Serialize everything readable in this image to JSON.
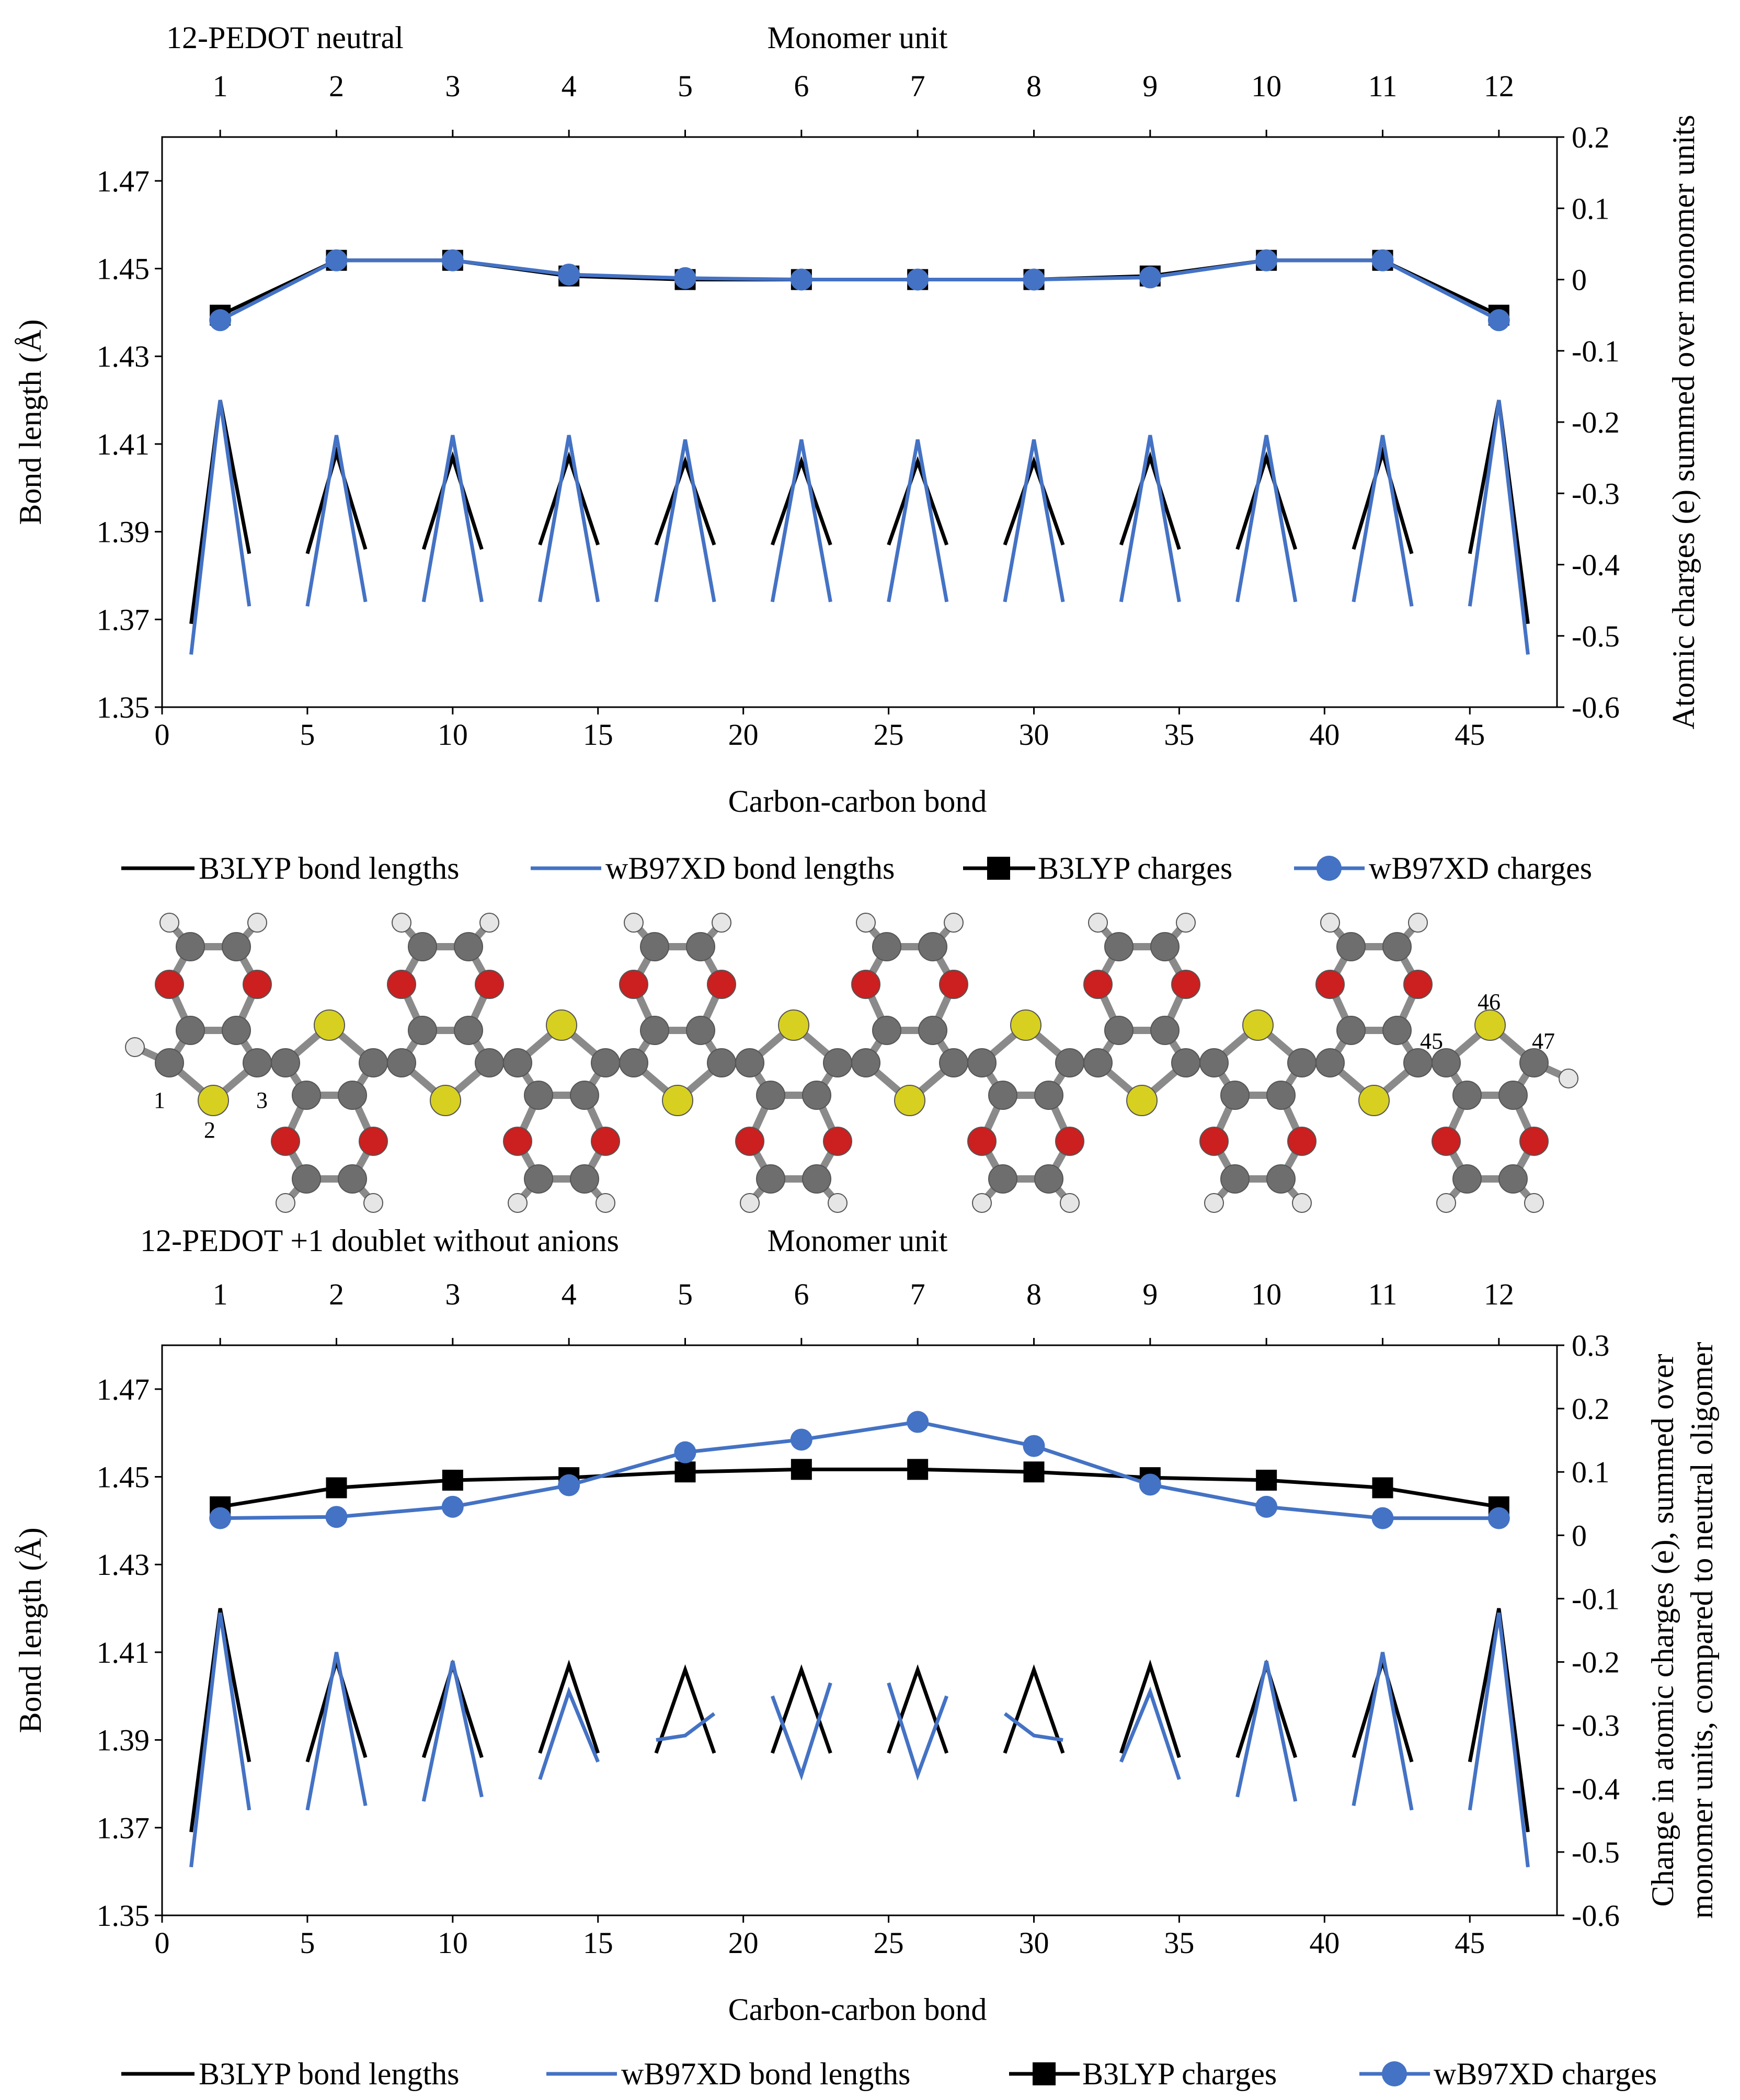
{
  "figure": {
    "panel_a_title": "12-PEDOT neutral",
    "panel_b_title": "12-PEDOT +1 doublet without anions",
    "top_axis_label": "Monomer unit",
    "bottom_axis_label": "Carbon-carbon bond",
    "left_axis_label": "Bond length (Å)",
    "right_axis_label_a": "Atomic charges (e) summed over monomer units",
    "right_axis_label_b_line1": "Change in atomic charges (e), summed over",
    "right_axis_label_b_line2": "monomer units, compared to neutral oligomer",
    "legend": [
      "B3LYP bond lengths",
      "wB97XD bond lengths",
      "B3LYP charges",
      "wB97XD charges"
    ],
    "molecule_atom_labels": [
      "1",
      "2",
      "3",
      "45",
      "46",
      "47"
    ],
    "colors": {
      "b3lyp": "#000000",
      "wb97xd": "#4472C4",
      "carbon": "#6e6e6e",
      "oxygen": "#cc1f1f",
      "sulfur": "#d8d020",
      "hydrogen": "#e6e6e6"
    }
  },
  "chart_data": [
    {
      "type": "line",
      "title": "12-PEDOT neutral",
      "xlabel": "Carbon-carbon bond",
      "ylabel": "Bond length (Å)",
      "x2label": "Monomer unit",
      "y2label": "Atomic charges (e) summed over monomer units",
      "xlim": [
        0,
        48
      ],
      "ylim": [
        1.35,
        1.48
      ],
      "y2lim": [
        -0.6,
        0.2
      ],
      "xticks": [
        0,
        5,
        10,
        15,
        20,
        25,
        30,
        35,
        40,
        45
      ],
      "yticks": [
        1.35,
        1.37,
        1.39,
        1.41,
        1.43,
        1.45,
        1.47
      ],
      "y2ticks": [
        -0.6,
        -0.5,
        -0.4,
        -0.3,
        -0.2,
        -0.1,
        0,
        0.1,
        0.2
      ],
      "x2_categories": [
        "1",
        "2",
        "3",
        "4",
        "5",
        "6",
        "7",
        "8",
        "9",
        "10",
        "11",
        "12"
      ],
      "x2_positions": [
        2,
        6,
        10,
        14,
        18,
        22,
        26,
        30,
        34,
        38,
        42,
        46
      ],
      "bond_series": [
        {
          "name": "B3LYP bond lengths",
          "segments": [
            [
              [
                1,
                1.369
              ],
              [
                2,
                1.42
              ],
              [
                3,
                1.385
              ]
            ],
            [
              [
                5,
                1.385
              ],
              [
                6,
                1.408
              ],
              [
                7,
                1.386
              ]
            ],
            [
              [
                9,
                1.386
              ],
              [
                10,
                1.407
              ],
              [
                11,
                1.386
              ]
            ],
            [
              [
                13,
                1.387
              ],
              [
                14,
                1.407
              ],
              [
                15,
                1.387
              ]
            ],
            [
              [
                17,
                1.387
              ],
              [
                18,
                1.406
              ],
              [
                19,
                1.387
              ]
            ],
            [
              [
                21,
                1.387
              ],
              [
                22,
                1.406
              ],
              [
                23,
                1.387
              ]
            ],
            [
              [
                25,
                1.387
              ],
              [
                26,
                1.406
              ],
              [
                27,
                1.387
              ]
            ],
            [
              [
                29,
                1.387
              ],
              [
                30,
                1.406
              ],
              [
                31,
                1.387
              ]
            ],
            [
              [
                33,
                1.387
              ],
              [
                34,
                1.407
              ],
              [
                35,
                1.386
              ]
            ],
            [
              [
                37,
                1.386
              ],
              [
                38,
                1.407
              ],
              [
                39,
                1.386
              ]
            ],
            [
              [
                41,
                1.386
              ],
              [
                42,
                1.408
              ],
              [
                43,
                1.385
              ]
            ],
            [
              [
                45,
                1.385
              ],
              [
                46,
                1.42
              ],
              [
                47,
                1.369
              ]
            ]
          ]
        },
        {
          "name": "wB97XD bond lengths",
          "segments": [
            [
              [
                1,
                1.362
              ],
              [
                2,
                1.42
              ],
              [
                3,
                1.373
              ]
            ],
            [
              [
                5,
                1.373
              ],
              [
                6,
                1.412
              ],
              [
                7,
                1.374
              ]
            ],
            [
              [
                9,
                1.374
              ],
              [
                10,
                1.412
              ],
              [
                11,
                1.374
              ]
            ],
            [
              [
                13,
                1.374
              ],
              [
                14,
                1.412
              ],
              [
                15,
                1.374
              ]
            ],
            [
              [
                17,
                1.374
              ],
              [
                18,
                1.411
              ],
              [
                19,
                1.374
              ]
            ],
            [
              [
                21,
                1.374
              ],
              [
                22,
                1.411
              ],
              [
                23,
                1.374
              ]
            ],
            [
              [
                25,
                1.374
              ],
              [
                26,
                1.411
              ],
              [
                27,
                1.374
              ]
            ],
            [
              [
                29,
                1.374
              ],
              [
                30,
                1.411
              ],
              [
                31,
                1.374
              ]
            ],
            [
              [
                33,
                1.374
              ],
              [
                34,
                1.412
              ],
              [
                35,
                1.374
              ]
            ],
            [
              [
                37,
                1.374
              ],
              [
                38,
                1.412
              ],
              [
                39,
                1.374
              ]
            ],
            [
              [
                41,
                1.374
              ],
              [
                42,
                1.412
              ],
              [
                43,
                1.373
              ]
            ],
            [
              [
                45,
                1.373
              ],
              [
                46,
                1.42
              ],
              [
                47,
                1.362
              ]
            ]
          ]
        }
      ],
      "charge_series": [
        {
          "name": "B3LYP charges",
          "x": [
            2,
            6,
            10,
            14,
            18,
            22,
            26,
            30,
            34,
            38,
            42,
            46
          ],
          "values": [
            -0.05,
            0.027,
            0.027,
            0.005,
            0.0,
            0.0,
            0.0,
            0.0,
            0.005,
            0.027,
            0.027,
            -0.05
          ]
        },
        {
          "name": "wB97XD charges",
          "x": [
            2,
            6,
            10,
            14,
            18,
            22,
            26,
            30,
            34,
            38,
            42,
            46
          ],
          "values": [
            -0.057,
            0.027,
            0.027,
            0.007,
            0.002,
            0.0,
            0.0,
            0.0,
            0.003,
            0.027,
            0.027,
            -0.057
          ]
        }
      ]
    },
    {
      "type": "line",
      "title": "12-PEDOT +1 doublet without anions",
      "xlabel": "Carbon-carbon bond",
      "ylabel": "Bond length (Å)",
      "x2label": "Monomer unit",
      "y2label": "Change in atomic charges (e), summed over monomer units, compared to neutral oligomer",
      "xlim": [
        0,
        48
      ],
      "ylim": [
        1.35,
        1.48
      ],
      "y2lim": [
        -0.6,
        0.3
      ],
      "xticks": [
        0,
        5,
        10,
        15,
        20,
        25,
        30,
        35,
        40,
        45
      ],
      "yticks": [
        1.35,
        1.37,
        1.39,
        1.41,
        1.43,
        1.45,
        1.47
      ],
      "y2ticks": [
        -0.6,
        -0.5,
        -0.4,
        -0.3,
        -0.2,
        -0.1,
        0,
        0.1,
        0.2,
        0.3
      ],
      "x2_categories": [
        "1",
        "2",
        "3",
        "4",
        "5",
        "6",
        "7",
        "8",
        "9",
        "10",
        "11",
        "12"
      ],
      "x2_positions": [
        2,
        6,
        10,
        14,
        18,
        22,
        26,
        30,
        34,
        38,
        42,
        46
      ],
      "bond_series": [
        {
          "name": "B3LYP bond lengths",
          "segments": [
            [
              [
                1,
                1.369
              ],
              [
                2,
                1.42
              ],
              [
                3,
                1.385
              ]
            ],
            [
              [
                5,
                1.385
              ],
              [
                6,
                1.408
              ],
              [
                7,
                1.386
              ]
            ],
            [
              [
                9,
                1.386
              ],
              [
                10,
                1.407
              ],
              [
                11,
                1.386
              ]
            ],
            [
              [
                13,
                1.387
              ],
              [
                14,
                1.407
              ],
              [
                15,
                1.387
              ]
            ],
            [
              [
                17,
                1.387
              ],
              [
                18,
                1.406
              ],
              [
                19,
                1.387
              ]
            ],
            [
              [
                21,
                1.387
              ],
              [
                22,
                1.406
              ],
              [
                23,
                1.387
              ]
            ],
            [
              [
                25,
                1.387
              ],
              [
                26,
                1.406
              ],
              [
                27,
                1.387
              ]
            ],
            [
              [
                29,
                1.387
              ],
              [
                30,
                1.406
              ],
              [
                31,
                1.387
              ]
            ],
            [
              [
                33,
                1.387
              ],
              [
                34,
                1.407
              ],
              [
                35,
                1.386
              ]
            ],
            [
              [
                37,
                1.386
              ],
              [
                38,
                1.407
              ],
              [
                39,
                1.386
              ]
            ],
            [
              [
                41,
                1.386
              ],
              [
                42,
                1.408
              ],
              [
                43,
                1.385
              ]
            ],
            [
              [
                45,
                1.385
              ],
              [
                46,
                1.42
              ],
              [
                47,
                1.369
              ]
            ]
          ]
        },
        {
          "name": "wB97XD bond lengths",
          "segments": [
            [
              [
                1,
                1.361
              ],
              [
                2,
                1.419
              ],
              [
                3,
                1.374
              ]
            ],
            [
              [
                5,
                1.374
              ],
              [
                6,
                1.41
              ],
              [
                7,
                1.375
              ]
            ],
            [
              [
                9,
                1.376
              ],
              [
                10,
                1.408
              ],
              [
                11,
                1.377
              ]
            ],
            [
              [
                13,
                1.381
              ],
              [
                14,
                1.401
              ],
              [
                15,
                1.385
              ]
            ],
            [
              [
                17,
                1.39
              ],
              [
                18,
                1.391
              ],
              [
                19,
                1.396
              ]
            ],
            [
              [
                21,
                1.4
              ],
              [
                22,
                1.382
              ],
              [
                23,
                1.403
              ]
            ],
            [
              [
                25,
                1.403
              ],
              [
                26,
                1.382
              ],
              [
                27,
                1.4
              ]
            ],
            [
              [
                29,
                1.396
              ],
              [
                30,
                1.391
              ],
              [
                31,
                1.39
              ]
            ],
            [
              [
                33,
                1.385
              ],
              [
                34,
                1.401
              ],
              [
                35,
                1.381
              ]
            ],
            [
              [
                37,
                1.377
              ],
              [
                38,
                1.408
              ],
              [
                39,
                1.376
              ]
            ],
            [
              [
                41,
                1.375
              ],
              [
                42,
                1.41
              ],
              [
                43,
                1.374
              ]
            ],
            [
              [
                45,
                1.374
              ],
              [
                46,
                1.419
              ],
              [
                47,
                1.361
              ]
            ]
          ]
        }
      ],
      "charge_series": [
        {
          "name": "B3LYP charges",
          "x": [
            2,
            6,
            10,
            14,
            18,
            22,
            26,
            30,
            34,
            38,
            42,
            46
          ],
          "values": [
            0.045,
            0.075,
            0.087,
            0.091,
            0.1,
            0.104,
            0.104,
            0.1,
            0.091,
            0.087,
            0.075,
            0.045
          ]
        },
        {
          "name": "wB97XD charges",
          "x": [
            2,
            6,
            10,
            14,
            18,
            22,
            26,
            30,
            34,
            38,
            42,
            46
          ],
          "values": [
            0.027,
            0.029,
            0.045,
            0.079,
            0.131,
            0.151,
            0.179,
            0.141,
            0.08,
            0.045,
            0.027,
            0.027
          ]
        }
      ]
    }
  ]
}
